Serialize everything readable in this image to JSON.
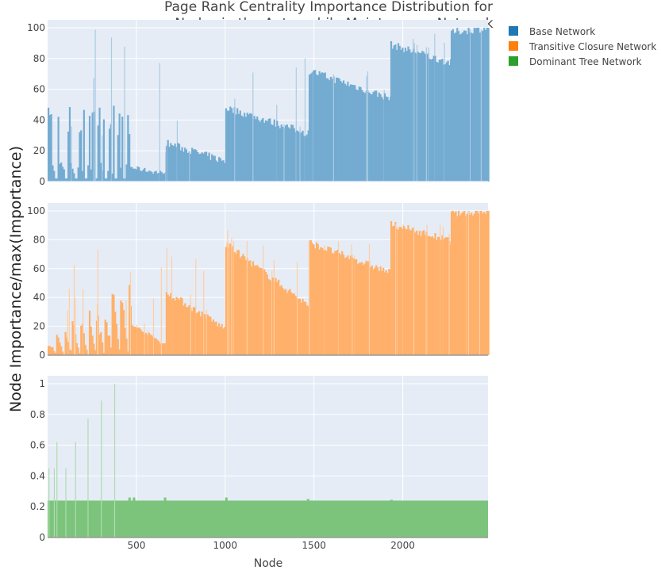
{
  "chart_data": {
    "type": "bar",
    "title_lines": [
      "Page Rank Centrality Importance Distribution for",
      "Nodes in the Automobile Maintenance Network"
    ],
    "xlabel": "Node",
    "ylabel": "Node Importance/max(Importance)",
    "xlim": [
      0,
      2480
    ],
    "x_ticks": [
      500,
      1000,
      1500,
      2000
    ],
    "x_tick_labels": [
      "500",
      "1000",
      "1500",
      "2000"
    ],
    "grid": true,
    "legend_position": "top-right",
    "legend": [
      "Base Network",
      "Transitive Closure Network",
      "Dominant Tree Network"
    ],
    "series": [
      {
        "name": "Base Network",
        "color": "#1f77b4",
        "ylim": [
          0,
          100
        ],
        "y_ticks": [
          0,
          20,
          40,
          60,
          80,
          100
        ],
        "y_tick_labels": [
          "0",
          "20",
          "40",
          "60",
          "80",
          "100"
        ],
        "segments": [
          {
            "x": [
              0,
              470
            ],
            "level_start": 26,
            "level_end": 25,
            "spikes_max": 99,
            "pattern": "clustered-spikes"
          },
          {
            "x": [
              470,
              665
            ],
            "level_start": 9,
            "level_end": 5,
            "spikes_max": 98,
            "pattern": "decay"
          },
          {
            "x": [
              665,
              1000
            ],
            "level_start": 24,
            "level_end": 12,
            "spikes_max": 97,
            "pattern": "sawtooth"
          },
          {
            "x": [
              1000,
              1470
            ],
            "level_start": 47,
            "level_end": 30,
            "spikes_max": 90,
            "pattern": "sawtooth"
          },
          {
            "x": [
              1470,
              1930
            ],
            "level_start": 71,
            "level_end": 53,
            "spikes_max": 74,
            "pattern": "sawtooth"
          },
          {
            "x": [
              1930,
              2270
            ],
            "level_start": 88,
            "level_end": 76,
            "spikes_max": 99,
            "pattern": "sawtooth"
          },
          {
            "x": [
              2270,
              2480
            ],
            "level_start": 96,
            "level_end": 99,
            "spikes_max": 100,
            "pattern": "sawtooth"
          }
        ]
      },
      {
        "name": "Transitive Closure Network",
        "color": "#ff7f0e",
        "ylim": [
          0,
          100
        ],
        "y_ticks": [
          0,
          20,
          40,
          60,
          80,
          100
        ],
        "y_tick_labels": [
          "0",
          "20",
          "40",
          "60",
          "80",
          "100"
        ],
        "segments": [
          {
            "x": [
              0,
              470
            ],
            "level_start": 2,
            "level_end": 6,
            "spikes_max": 76,
            "pattern": "rising-spikes"
          },
          {
            "x": [
              470,
              665
            ],
            "level_start": 21,
            "level_end": 7,
            "spikes_max": 87,
            "pattern": "decay"
          },
          {
            "x": [
              665,
              1000
            ],
            "level_start": 43,
            "level_end": 17,
            "spikes_max": 88,
            "pattern": "sawtooth"
          },
          {
            "x": [
              1000,
              1470
            ],
            "level_start": 76,
            "level_end": 33,
            "spikes_max": 90,
            "pattern": "sawtooth"
          },
          {
            "x": [
              1470,
              1930
            ],
            "level_start": 77,
            "level_end": 56,
            "spikes_max": 80,
            "pattern": "sawtooth"
          },
          {
            "x": [
              1930,
              2270
            ],
            "level_start": 90,
            "level_end": 78,
            "spikes_max": 91,
            "pattern": "sawtooth"
          },
          {
            "x": [
              2270,
              2480
            ],
            "level_start": 97,
            "level_end": 99,
            "spikes_max": 100,
            "pattern": "sawtooth"
          }
        ]
      },
      {
        "name": "Dominant Tree Network",
        "color": "#2ca02c",
        "ylim": [
          0,
          1.05
        ],
        "y_ticks": [
          0,
          0.2,
          0.4,
          0.6,
          0.8,
          1
        ],
        "y_tick_labels": [
          "0",
          "0.2",
          "0.4",
          "0.6",
          "0.8",
          "1"
        ],
        "baseline_level": 0.24,
        "spikes": [
          {
            "x": 5,
            "y": 0.45
          },
          {
            "x": 35,
            "y": 0.45
          },
          {
            "x": 50,
            "y": 0.62
          },
          {
            "x": 100,
            "y": 0.45
          },
          {
            "x": 155,
            "y": 0.62
          },
          {
            "x": 225,
            "y": 0.77
          },
          {
            "x": 300,
            "y": 0.89
          },
          {
            "x": 375,
            "y": 1.0
          },
          {
            "x": 455,
            "y": 0.26
          },
          {
            "x": 480,
            "y": 0.26
          },
          {
            "x": 655,
            "y": 0.26
          },
          {
            "x": 1000,
            "y": 0.26
          },
          {
            "x": 1460,
            "y": 0.25
          },
          {
            "x": 1930,
            "y": 0.245
          }
        ]
      }
    ]
  }
}
